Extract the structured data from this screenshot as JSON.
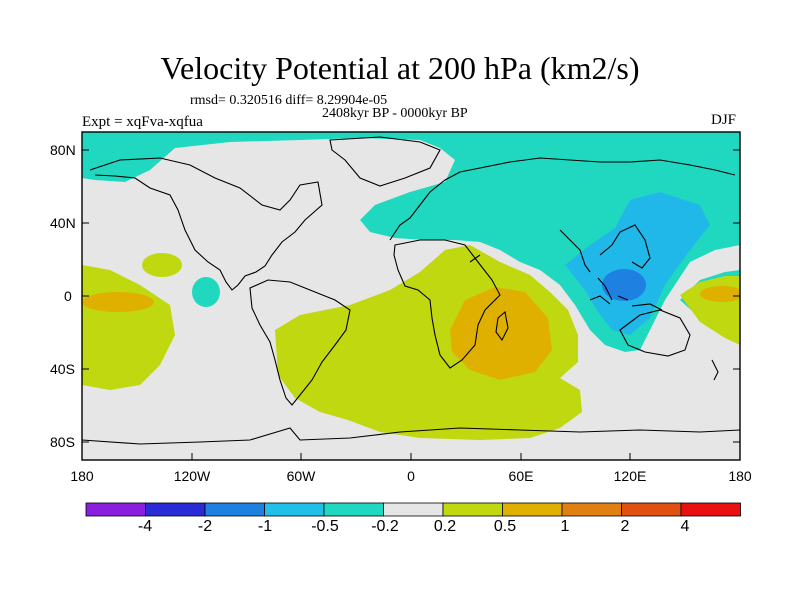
{
  "title": "Velocity Potential at 200 hPa (km2/s)",
  "stats": "rmsd= 0.320516 diff= 8.29904e-05",
  "period": "2408kyr BP - 0000kyr BP",
  "expt": "Expt = xqFva-xqfua",
  "season": "DJF",
  "lat_labels": [
    "80N",
    "40N",
    "0",
    "40S",
    "80S"
  ],
  "lon_labels": [
    "180",
    "120W",
    "60W",
    "0",
    "60E",
    "120E",
    "180"
  ],
  "colorbar": {
    "labels": [
      "-4",
      "-2",
      "-1",
      "-0.5",
      "-0.2",
      "0.2",
      "0.5",
      "1",
      "2",
      "4"
    ],
    "colors": [
      "#8a1fe0",
      "#2a2ad6",
      "#1e80e0",
      "#20c0e8",
      "#20d8c0",
      "#e6e6e6",
      "#c0d810",
      "#e0b000",
      "#e08010",
      "#e05010",
      "#e81010"
    ]
  },
  "palette": {
    "neutral": "#e6e6e6",
    "teal": "#20d8c0",
    "lightblue": "#20b8e8",
    "blue": "#1e80e0",
    "green": "#c0d810",
    "gold": "#e0b000",
    "orange": "#e08010"
  }
}
